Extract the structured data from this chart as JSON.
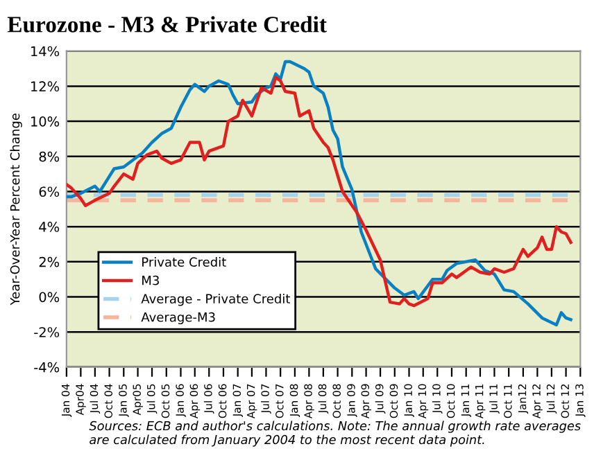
{
  "chart_data": {
    "type": "line",
    "title": "Eurozone - M3 & Private Credit",
    "ylabel": "Year-Over-Year Percent Change",
    "annotations": [
      "Sources: ECB and author's calculations. Note: The annual growth rate averages are calculated from January 2004 to the most recent data point."
    ],
    "series": [
      {
        "name": "Private Credit",
        "color": "#0a80c2",
        "x": [
          "2004-01",
          "2004-02",
          "2004-04",
          "2004-07",
          "2004-08",
          "2004-11",
          "2005-01",
          "2005-04",
          "2005-05",
          "2005-07",
          "2005-09",
          "2005-11",
          "2006-01",
          "2006-03",
          "2006-04",
          "2006-06",
          "2006-07",
          "2006-09",
          "2006-11",
          "2006-12",
          "2007-01",
          "2007-04",
          "2007-05",
          "2007-07",
          "2007-08",
          "2007-09",
          "2007-10",
          "2007-11",
          "2007-12",
          "2008-03",
          "2008-04",
          "2008-05",
          "2008-07",
          "2008-08",
          "2008-09",
          "2008-10",
          "2008-11",
          "2009-01",
          "2009-03",
          "2009-06",
          "2009-10",
          "2009-12",
          "2010-02",
          "2010-03",
          "2010-06",
          "2010-08",
          "2010-09",
          "2010-11",
          "2011-03",
          "2011-05",
          "2011-07",
          "2011-09",
          "2011-11",
          "2012-02",
          "2012-05",
          "2012-08",
          "2012-09",
          "2012-10",
          "2012-11"
        ],
        "values": [
          5.7,
          5.7,
          5.9,
          6.3,
          6.0,
          7.3,
          7.4,
          8.0,
          8.2,
          8.8,
          9.3,
          9.6,
          10.8,
          11.8,
          12.1,
          11.7,
          12.0,
          12.3,
          12.1,
          11.5,
          11.0,
          11.1,
          11.5,
          11.9,
          12.0,
          12.7,
          12.4,
          13.4,
          13.4,
          13.0,
          12.8,
          12.0,
          11.6,
          10.8,
          9.5,
          9.0,
          7.4,
          6.1,
          3.7,
          1.6,
          0.5,
          0.1,
          0.3,
          -0.1,
          1.0,
          1.0,
          1.5,
          1.9,
          2.1,
          1.5,
          1.3,
          0.4,
          0.3,
          -0.4,
          -1.2,
          -1.6,
          -0.9,
          -1.2,
          -1.3
        ]
      },
      {
        "name": "M3",
        "color": "#e0201e",
        "x": [
          "2004-01",
          "2004-02",
          "2004-04",
          "2004-05",
          "2004-07",
          "2004-10",
          "2004-11",
          "2005-01",
          "2005-03",
          "2005-04",
          "2005-06",
          "2005-08",
          "2005-09",
          "2005-11",
          "2006-01",
          "2006-03",
          "2006-05",
          "2006-06",
          "2006-07",
          "2006-10",
          "2006-11",
          "2007-01",
          "2007-02",
          "2007-04",
          "2007-05",
          "2007-06",
          "2007-08",
          "2007-09",
          "2007-10",
          "2007-11",
          "2008-01",
          "2008-02",
          "2008-04",
          "2008-05",
          "2008-07",
          "2008-08",
          "2008-09",
          "2008-11",
          "2009-02",
          "2009-04",
          "2009-07",
          "2009-09",
          "2009-11",
          "2009-12",
          "2010-01",
          "2010-02",
          "2010-05",
          "2010-06",
          "2010-08",
          "2010-10",
          "2010-11",
          "2011-02",
          "2011-04",
          "2011-06",
          "2011-07",
          "2011-09",
          "2011-11",
          "2012-01",
          "2012-02",
          "2012-04",
          "2012-05",
          "2012-06",
          "2012-07",
          "2012-08",
          "2012-09",
          "2012-10",
          "2012-11"
        ],
        "values": [
          6.4,
          6.2,
          5.6,
          5.2,
          5.5,
          5.9,
          6.3,
          7.0,
          6.7,
          7.6,
          8.1,
          8.3,
          7.9,
          7.6,
          7.8,
          8.8,
          8.8,
          7.8,
          8.3,
          8.6,
          10.0,
          10.3,
          11.2,
          10.3,
          11.1,
          11.9,
          11.6,
          12.5,
          12.3,
          11.7,
          11.6,
          10.3,
          10.6,
          9.6,
          8.8,
          8.5,
          7.8,
          6.0,
          4.8,
          3.8,
          2.1,
          -0.3,
          -0.4,
          -0.1,
          -0.4,
          -0.5,
          -0.1,
          0.8,
          0.8,
          1.3,
          1.1,
          1.7,
          1.4,
          1.3,
          1.6,
          1.4,
          1.6,
          2.7,
          2.3,
          2.8,
          3.4,
          2.7,
          2.7,
          4.0,
          3.7,
          3.6,
          3.1
        ]
      }
    ],
    "ref_lines": [
      {
        "axis": "y",
        "value": 5.8,
        "label": "Average - Private Credit",
        "color": "#a6d2ee",
        "line_style": "dashed"
      },
      {
        "axis": "y",
        "value": 5.5,
        "label": "Average-M3",
        "color": "#f5b49c",
        "line_style": "dashed"
      }
    ],
    "xlim": [
      "2004-01",
      "2013-01"
    ],
    "xticks": [
      {
        "value": "2004-01",
        "label": "Jan 04"
      },
      {
        "value": "2004-04",
        "label": "Apr04"
      },
      {
        "value": "2004-07",
        "label": "Jul 04"
      },
      {
        "value": "2004-10",
        "label": "Oct 04"
      },
      {
        "value": "2005-01",
        "label": "Jan 05"
      },
      {
        "value": "2005-04",
        "label": "Apr05"
      },
      {
        "value": "2005-07",
        "label": "Jul 05"
      },
      {
        "value": "2005-10",
        "label": "Oct 05"
      },
      {
        "value": "2006-01",
        "label": "Jan 06"
      },
      {
        "value": "2006-04",
        "label": "Apr 06"
      },
      {
        "value": "2006-07",
        "label": "Jul 06"
      },
      {
        "value": "2006-10",
        "label": "Oct 06"
      },
      {
        "value": "2007-01",
        "label": "Jan 07"
      },
      {
        "value": "2007-04",
        "label": "Apr 07"
      },
      {
        "value": "2007-07",
        "label": "Jul 07"
      },
      {
        "value": "2007-10",
        "label": "Oct 07"
      },
      {
        "value": "2008-01",
        "label": "Jan 08"
      },
      {
        "value": "2008-04",
        "label": "Apr 08"
      },
      {
        "value": "2008-07",
        "label": "Jul 08"
      },
      {
        "value": "2008-10",
        "label": "Oct 08"
      },
      {
        "value": "2009-01",
        "label": "Jan 09"
      },
      {
        "value": "2009-04",
        "label": "Apr 09"
      },
      {
        "value": "2009-07",
        "label": "Jul 09"
      },
      {
        "value": "2009-10",
        "label": "Oct 09"
      },
      {
        "value": "2010-01",
        "label": "Jan 10"
      },
      {
        "value": "2010-04",
        "label": "Apr 10"
      },
      {
        "value": "2010-07",
        "label": "Jul 10"
      },
      {
        "value": "2010-10",
        "label": "Oct 10"
      },
      {
        "value": "2011-01",
        "label": "Jan 11"
      },
      {
        "value": "2011-04",
        "label": "Apr 11"
      },
      {
        "value": "2011-07",
        "label": "Jul 11"
      },
      {
        "value": "2011-10",
        "label": "Oct 11"
      },
      {
        "value": "2012-01",
        "label": "Jan12"
      },
      {
        "value": "2012-04",
        "label": "Apr 12"
      },
      {
        "value": "2012-07",
        "label": "Jul 12"
      },
      {
        "value": "2012-10",
        "label": "Oct 12"
      },
      {
        "value": "2013-01",
        "label": "Jan 13"
      }
    ],
    "ylim": [
      -4,
      14
    ],
    "yticks": [
      {
        "value": -4,
        "label": "-4%"
      },
      {
        "value": -2,
        "label": "-2%"
      },
      {
        "value": 0,
        "label": "0%"
      },
      {
        "value": 2,
        "label": "2%"
      },
      {
        "value": 4,
        "label": "4%"
      },
      {
        "value": 6,
        "label": "6%"
      },
      {
        "value": 8,
        "label": "8%"
      },
      {
        "value": 10,
        "label": "10%"
      },
      {
        "value": 12,
        "label": "12%"
      },
      {
        "value": 14,
        "label": "14%"
      }
    ],
    "grid": "y",
    "legend": "bottom left",
    "line_style": "solid",
    "marker": "none"
  }
}
